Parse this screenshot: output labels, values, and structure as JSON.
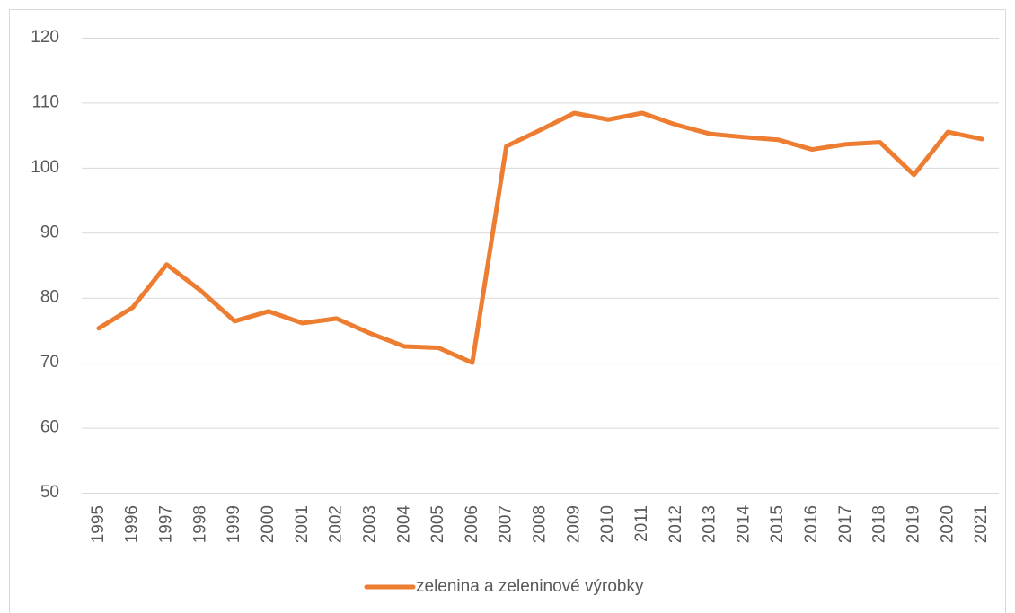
{
  "chart_data": {
    "type": "line",
    "categories": [
      "1995",
      "1996",
      "1997",
      "1998",
      "1999",
      "2000",
      "2001",
      "2002",
      "2003",
      "2004",
      "2005",
      "2006",
      "2007",
      "2008",
      "2009",
      "2010",
      "2011",
      "2012",
      "2013",
      "2014",
      "2015",
      "2016",
      "2017",
      "2018",
      "2019",
      "2020",
      "2021"
    ],
    "series": [
      {
        "name": "zelenina a zeleninové výrobky",
        "color": "#ed7d31",
        "values": [
          75.3,
          78.5,
          85.1,
          81.1,
          76.4,
          77.9,
          76.1,
          76.8,
          74.5,
          72.5,
          72.3,
          70.0,
          103.3,
          105.8,
          108.4,
          107.4,
          108.4,
          106.6,
          105.2,
          104.7,
          104.3,
          102.8,
          103.6,
          103.9,
          98.9,
          105.5,
          104.4
        ]
      }
    ],
    "ylim": [
      50,
      120
    ],
    "yticks": [
      50,
      60,
      70,
      80,
      90,
      100,
      110,
      120
    ],
    "grid": true,
    "legend": "bottom"
  }
}
